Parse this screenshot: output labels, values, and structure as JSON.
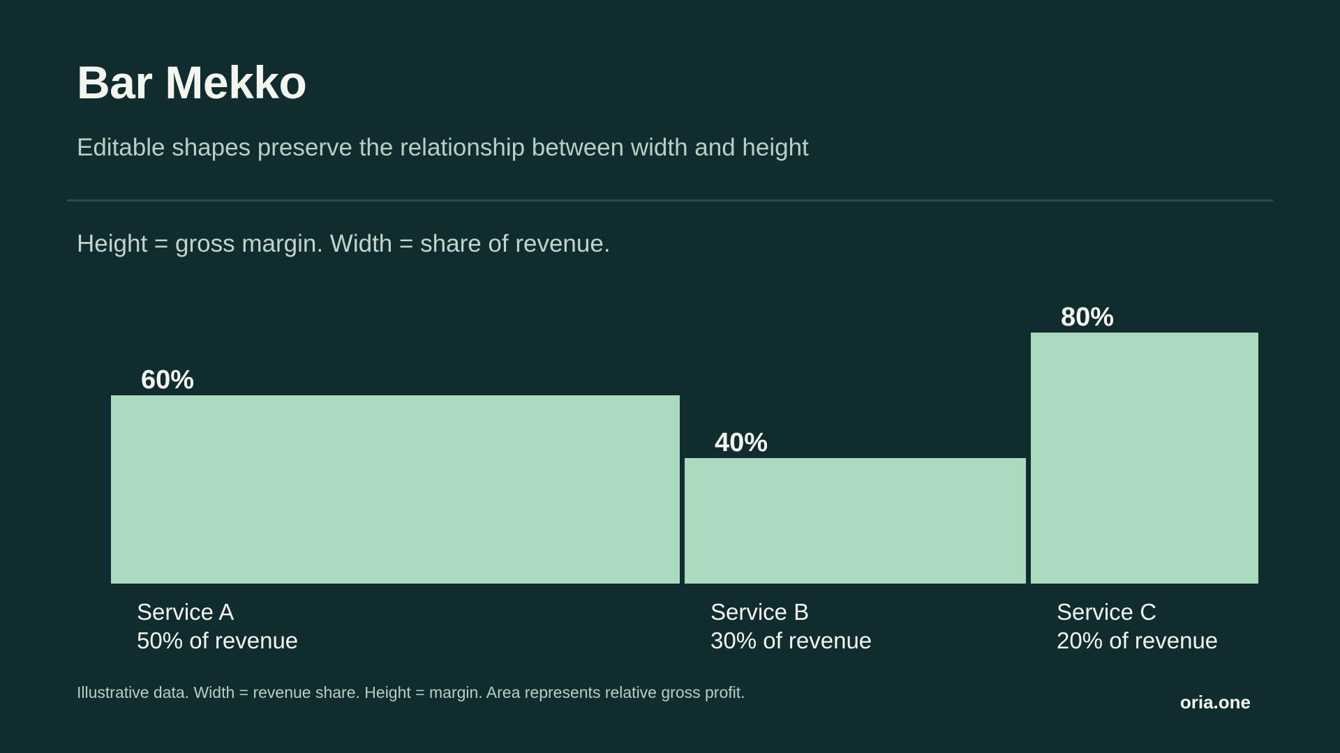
{
  "header": {
    "title": "Bar Mekko",
    "subtitle": "Editable shapes preserve the relationship between width and height"
  },
  "caption": "Height = gross margin. Width = share of revenue.",
  "footer": {
    "note": "Illustrative data. Width = revenue share. Height = margin. Area represents relative gross profit.",
    "brand": "oria.one"
  },
  "colors": {
    "background": "#112c2e",
    "bar": "#aadbbe",
    "text": "#f3f6ef",
    "muted_text": "#b9cfc4",
    "divider": "#2e4b4b"
  },
  "chart_data": {
    "type": "bar",
    "variant": "marimekko",
    "categories": [
      "Service A",
      "Service B",
      "Service C"
    ],
    "widths": [
      50,
      30,
      20
    ],
    "width_labels": [
      "50% of revenue",
      "30% of revenue",
      "20% of revenue"
    ],
    "values": [
      60,
      40,
      80
    ],
    "value_labels": [
      "60%",
      "40%",
      "80%"
    ],
    "ylim": [
      0,
      100
    ],
    "grid": false,
    "legend": "none"
  }
}
